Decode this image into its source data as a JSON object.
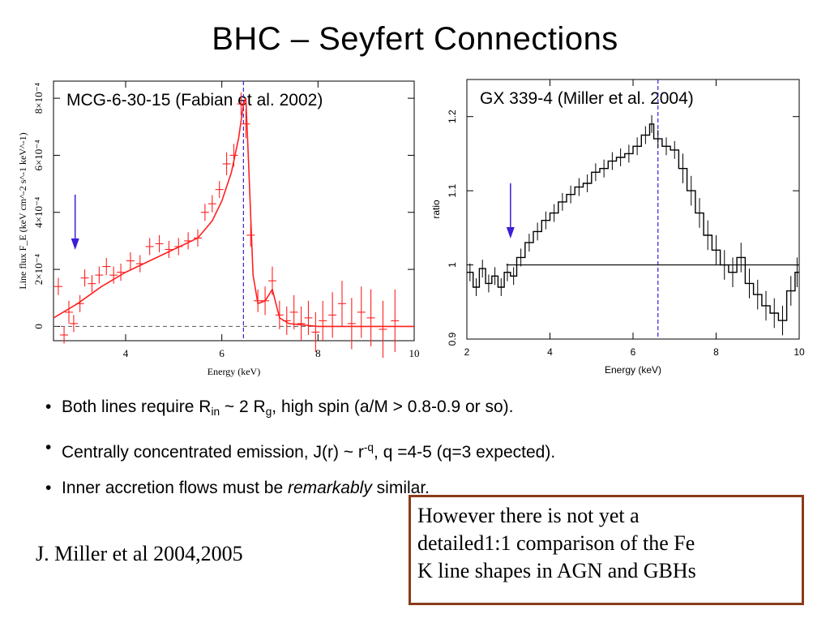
{
  "slide": {
    "title": "BHC – Seyfert Connections"
  },
  "bullets": [
    {
      "pre": "Both lines require R",
      "sub1": "in",
      "mid": " ~ 2 R",
      "sub2": "g",
      "post": ", high spin (a/M > 0.8-0.9 or so)."
    },
    {
      "pre": "Centrally concentrated emission, J(r) ~ r",
      "sup": "-q",
      "post": ", q =4-5 (q=3 expected)."
    },
    {
      "pre": "Inner accretion flows must be ",
      "em": "remarkably",
      "post": " similar."
    }
  ],
  "reference": "J. Miller et al 2004,2005",
  "note": {
    "lines": [
      "However there is not yet a",
      "detailed1:1 comparison of the Fe",
      "K line shapes in AGN and GBHs"
    ],
    "border_color": "#8B3A1A"
  },
  "chart_data": [
    {
      "type": "scatter",
      "title": "MCG-6-30-15 (Fabian et al. 2002)",
      "xlabel": "Energy (keV)",
      "ylabel": "Line flux F_E (keV cm^-2 s^-1 keV^-1)",
      "xlim": [
        2.5,
        10
      ],
      "ylim": [
        -5e-05,
        0.00086
      ],
      "xticks": [
        4,
        6,
        8,
        10
      ],
      "xtick_labels": [
        "4",
        "6",
        "8",
        "10"
      ],
      "yticks": [
        0,
        0.0002,
        0.0004,
        0.0006,
        0.0008
      ],
      "ytick_labels": [
        "0",
        "2×10⁻⁴",
        "4×10⁻⁴",
        "6×10⁻⁴",
        "8×10⁻⁴"
      ],
      "vline_x": 6.45,
      "data_color": "#ff2020",
      "marker_color": "#3a1fd6",
      "arrow_x": 2.95,
      "points": [
        {
          "x": 2.6,
          "y": 0.00014,
          "err": 3e-05
        },
        {
          "x": 2.72,
          "y": -3e-05,
          "err": 3e-05
        },
        {
          "x": 2.82,
          "y": 5e-05,
          "err": 4e-05
        },
        {
          "x": 2.92,
          "y": 1e-05,
          "err": 3e-05
        },
        {
          "x": 3.05,
          "y": 8e-05,
          "err": 3e-05
        },
        {
          "x": 3.15,
          "y": 0.00017,
          "err": 3e-05
        },
        {
          "x": 3.3,
          "y": 0.00015,
          "err": 3e-05
        },
        {
          "x": 3.45,
          "y": 0.00018,
          "err": 3e-05
        },
        {
          "x": 3.6,
          "y": 0.00021,
          "err": 3e-05
        },
        {
          "x": 3.75,
          "y": 0.00018,
          "err": 3e-05
        },
        {
          "x": 3.9,
          "y": 0.00019,
          "err": 3e-05
        },
        {
          "x": 4.1,
          "y": 0.00023,
          "err": 3e-05
        },
        {
          "x": 4.3,
          "y": 0.00022,
          "err": 3e-05
        },
        {
          "x": 4.5,
          "y": 0.00028,
          "err": 3e-05
        },
        {
          "x": 4.7,
          "y": 0.00029,
          "err": 3e-05
        },
        {
          "x": 4.9,
          "y": 0.00027,
          "err": 3e-05
        },
        {
          "x": 5.1,
          "y": 0.00028,
          "err": 3e-05
        },
        {
          "x": 5.3,
          "y": 0.0003,
          "err": 3e-05
        },
        {
          "x": 5.5,
          "y": 0.00031,
          "err": 3e-05
        },
        {
          "x": 5.65,
          "y": 0.0004,
          "err": 3e-05
        },
        {
          "x": 5.8,
          "y": 0.00043,
          "err": 3e-05
        },
        {
          "x": 5.95,
          "y": 0.00048,
          "err": 3e-05
        },
        {
          "x": 6.1,
          "y": 0.00057,
          "err": 4e-05
        },
        {
          "x": 6.25,
          "y": 0.0006,
          "err": 4e-05
        },
        {
          "x": 6.4,
          "y": 0.00078,
          "err": 4e-05
        },
        {
          "x": 6.5,
          "y": 0.00071,
          "err": 5e-05
        },
        {
          "x": 6.6,
          "y": 0.00032,
          "err": 4e-05
        },
        {
          "x": 6.75,
          "y": 9e-05,
          "err": 4e-05
        },
        {
          "x": 6.9,
          "y": 9e-05,
          "err": 5e-05
        },
        {
          "x": 7.05,
          "y": 0.00016,
          "err": 5e-05
        },
        {
          "x": 7.2,
          "y": 4e-05,
          "err": 5e-05
        },
        {
          "x": 7.35,
          "y": 2e-05,
          "err": 5e-05
        },
        {
          "x": 7.5,
          "y": 5e-05,
          "err": 6e-05
        },
        {
          "x": 7.65,
          "y": 1e-05,
          "err": 6e-05
        },
        {
          "x": 7.8,
          "y": 3e-05,
          "err": 6e-05
        },
        {
          "x": 7.95,
          "y": -2e-05,
          "err": 7e-05
        },
        {
          "x": 8.1,
          "y": 2e-05,
          "err": 7e-05
        },
        {
          "x": 8.3,
          "y": 4e-05,
          "err": 8e-05
        },
        {
          "x": 8.5,
          "y": 8e-05,
          "err": 8e-05
        },
        {
          "x": 8.7,
          "y": 1e-05,
          "err": 9e-05
        },
        {
          "x": 8.9,
          "y": 5e-05,
          "err": 9e-05
        },
        {
          "x": 9.1,
          "y": 3e-05,
          "err": 0.0001
        },
        {
          "x": 9.35,
          "y": -1e-05,
          "err": 0.0001
        },
        {
          "x": 9.6,
          "y": 2e-05,
          "err": 0.00011
        }
      ],
      "model": [
        [
          2.5,
          3e-05
        ],
        [
          3.0,
          8e-05
        ],
        [
          3.5,
          0.00014
        ],
        [
          4.0,
          0.00019
        ],
        [
          4.5,
          0.00023
        ],
        [
          5.0,
          0.00027
        ],
        [
          5.5,
          0.00031
        ],
        [
          5.8,
          0.00037
        ],
        [
          6.0,
          0.00044
        ],
        [
          6.2,
          0.00054
        ],
        [
          6.35,
          0.00066
        ],
        [
          6.45,
          0.00078
        ],
        [
          6.5,
          0.0008
        ],
        [
          6.55,
          0.0006
        ],
        [
          6.65,
          0.00018
        ],
        [
          6.75,
          8e-05
        ],
        [
          6.9,
          9e-05
        ],
        [
          7.05,
          0.00013
        ],
        [
          7.2,
          3e-05
        ],
        [
          7.4,
          1e-05
        ],
        [
          8.0,
          0.0
        ],
        [
          10.0,
          0.0
        ]
      ]
    },
    {
      "type": "line",
      "title": "GX 339-4 (Miller et al. 2004)",
      "xlabel": "Energy (keV)",
      "ylabel": "ratio",
      "xlim": [
        2,
        10
      ],
      "ylim": [
        0.9,
        1.25
      ],
      "xticks": [
        2,
        4,
        6,
        8,
        10
      ],
      "xtick_labels": [
        "2",
        "4",
        "6",
        "8",
        "10"
      ],
      "yticks": [
        0.9,
        1.0,
        1.1,
        1.2
      ],
      "ytick_labels": [
        "0.9",
        "1",
        "1.1",
        "1.2"
      ],
      "hline_y": 1.0,
      "vline_x": 6.6,
      "data_color": "#000000",
      "marker_color": "#3a1fd6",
      "arrow_x": 3.05,
      "series": [
        {
          "x": [
            2.0,
            2.15,
            2.3,
            2.45,
            2.6,
            2.75,
            2.9,
            3.05,
            3.2,
            3.4,
            3.6,
            3.8,
            4.0,
            4.2,
            4.4,
            4.6,
            4.8,
            5.0,
            5.2,
            5.4,
            5.6,
            5.8,
            6.0,
            6.2,
            6.4,
            6.5,
            6.7,
            6.9,
            7.1,
            7.3,
            7.5,
            7.7,
            7.9,
            8.1,
            8.3,
            8.5,
            8.7,
            8.9,
            9.1,
            9.3,
            9.5,
            9.7,
            9.9
          ],
          "y": [
            0.99,
            0.97,
            0.995,
            0.975,
            0.985,
            0.97,
            0.99,
            0.985,
            1.01,
            1.03,
            1.045,
            1.06,
            1.07,
            1.085,
            1.095,
            1.105,
            1.11,
            1.125,
            1.13,
            1.14,
            1.145,
            1.15,
            1.16,
            1.175,
            1.19,
            1.17,
            1.16,
            1.155,
            1.13,
            1.1,
            1.07,
            1.04,
            1.02,
            1.0,
            0.99,
            1.01,
            0.975,
            0.96,
            0.945,
            0.935,
            0.925,
            0.965,
            0.99
          ]
        }
      ]
    }
  ]
}
